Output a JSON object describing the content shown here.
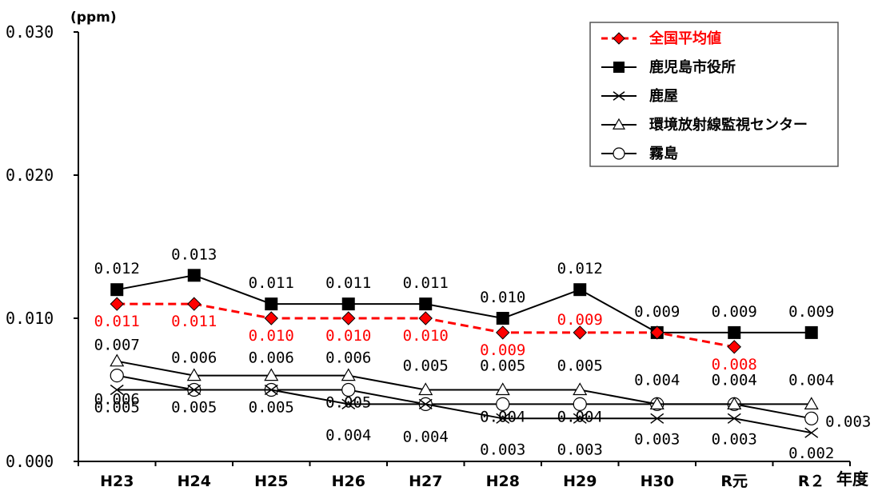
{
  "chart_data": {
    "type": "line",
    "y_unit": "(ppm)",
    "x_unit": "年度",
    "categories": [
      "H23",
      "H24",
      "H25",
      "H26",
      "H27",
      "H28",
      "H29",
      "H30",
      "R元",
      "R２"
    ],
    "ylim": [
      0,
      0.03
    ],
    "yticks": [
      "0.000",
      "0.010",
      "0.020",
      "0.030"
    ],
    "grid": false,
    "legend_position": "top-right",
    "series": [
      {
        "name": "全国平均値",
        "color": "#ff0000",
        "marker": "diamond",
        "dashed": true,
        "values": [
          0.011,
          0.011,
          0.01,
          0.01,
          0.01,
          0.009,
          0.009,
          0.009,
          0.008,
          null
        ],
        "labels": [
          "0.011",
          "0.011",
          "0.010",
          "0.010",
          "0.010",
          "0.009",
          "0.009",
          "",
          "0.008",
          ""
        ]
      },
      {
        "name": "鹿児島市役所",
        "color": "#000000",
        "marker": "square",
        "dashed": false,
        "values": [
          0.012,
          0.013,
          0.011,
          0.011,
          0.011,
          0.01,
          0.012,
          0.009,
          0.009,
          0.009
        ],
        "labels": [
          "0.012",
          "0.013",
          "0.011",
          "0.011",
          "0.011",
          "0.010",
          "0.012",
          "0.009",
          "0.009",
          "0.009"
        ]
      },
      {
        "name": "鹿屋",
        "color": "#000000",
        "marker": "x",
        "dashed": false,
        "values": [
          0.005,
          0.005,
          0.005,
          0.004,
          0.004,
          0.003,
          0.003,
          0.003,
          0.003,
          0.002
        ],
        "labels": [
          "0.005",
          "0.005",
          "0.005",
          "0.004",
          "0.004",
          "0.003",
          "0.003",
          "0.003",
          "0.003",
          "0.002"
        ]
      },
      {
        "name": "環境放射線監視センター",
        "color": "#000000",
        "marker": "triangle",
        "dashed": false,
        "values": [
          0.007,
          0.006,
          0.006,
          0.006,
          0.005,
          0.005,
          0.005,
          0.004,
          0.004,
          0.004
        ],
        "labels": [
          "0.007",
          "0.006",
          "0.006",
          "0.006",
          "0.005",
          "0.005",
          "0.005",
          "0.004",
          "0.004",
          "0.004"
        ]
      },
      {
        "name": "霧島",
        "color": "#000000",
        "marker": "circle",
        "dashed": false,
        "values": [
          0.006,
          0.005,
          0.005,
          0.005,
          0.004,
          0.004,
          0.004,
          0.004,
          0.004,
          0.003
        ],
        "labels": [
          "0.006",
          "",
          "",
          "0.005",
          "",
          "0.004",
          "0.004",
          "",
          "",
          "0.003"
        ]
      }
    ]
  }
}
